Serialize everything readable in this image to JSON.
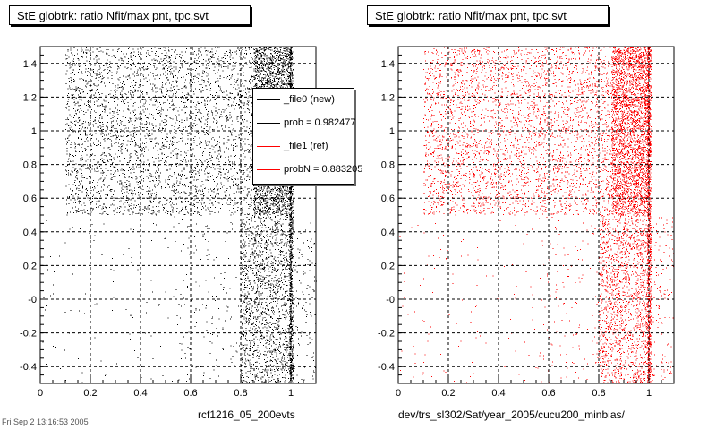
{
  "chart_data": [
    {
      "type": "scatter",
      "title": "StE globtrk: ratio Nfit/max pnt, tpc,svt",
      "xlabel": "rcf1216_05_200evts",
      "ylabel": "",
      "xlim": [
        0,
        1.1
      ],
      "ylim": [
        -0.5,
        1.5
      ],
      "xticks": [
        "0",
        "0.2",
        "0.4",
        "0.6",
        "0.8",
        "1"
      ],
      "yticks": [
        "-0.4",
        "-0.2",
        "-0",
        "0.2",
        "0.4",
        "0.6",
        "0.8",
        "1",
        "1.2",
        "1.4"
      ],
      "grid": true,
      "marker_color": "#000000",
      "regions": [
        {
          "x": [
            0.1,
            1.0
          ],
          "y": [
            0.5,
            1.5
          ],
          "density": "high"
        },
        {
          "x": [
            0.8,
            1.0
          ],
          "y": [
            -0.5,
            0.5
          ],
          "density": "medium"
        },
        {
          "x": [
            1.0,
            1.1
          ],
          "y": [
            -0.5,
            0.5
          ],
          "density": "low"
        },
        {
          "x": [
            0.0,
            0.8
          ],
          "y": [
            -0.5,
            0.5
          ],
          "density": "sparse"
        }
      ],
      "legend": {
        "placement": "top-right",
        "entries": [
          {
            "label": "_file0 (new)",
            "color": "#000000"
          },
          {
            "label": "prob = 0.982477",
            "color": "#000000"
          },
          {
            "label": "_file1 (ref)",
            "color": "#ff0000"
          },
          {
            "label": "probN = 0.883205",
            "color": "#ff0000"
          }
        ]
      }
    },
    {
      "type": "scatter",
      "title": "StE globtrk: ratio Nfit/max pnt, tpc,svt",
      "xlabel": "dev/trs_sl302/Sat/year_2005/cucu200_minbias/",
      "ylabel": "",
      "xlim": [
        0,
        1.1
      ],
      "ylim": [
        -0.5,
        1.5
      ],
      "xticks": [
        "0",
        "0.2",
        "0.4",
        "0.6",
        "0.8",
        "1"
      ],
      "yticks": [
        "-0.4",
        "-0.2",
        "-0",
        "0.2",
        "0.4",
        "0.6",
        "0.8",
        "1",
        "1.2",
        "1.4"
      ],
      "grid": true,
      "marker_color": "#ff0000",
      "regions": [
        {
          "x": [
            0.1,
            1.0
          ],
          "y": [
            0.5,
            1.5
          ],
          "density": "high"
        },
        {
          "x": [
            0.8,
            1.0
          ],
          "y": [
            -0.5,
            0.5
          ],
          "density": "medium"
        },
        {
          "x": [
            1.0,
            1.1
          ],
          "y": [
            -0.5,
            0.5
          ],
          "density": "low"
        },
        {
          "x": [
            0.0,
            0.8
          ],
          "y": [
            -0.5,
            0.5
          ],
          "density": "sparse"
        }
      ]
    }
  ],
  "footer": {
    "stamp": "Fri Sep 2 13:16:53 2005"
  }
}
